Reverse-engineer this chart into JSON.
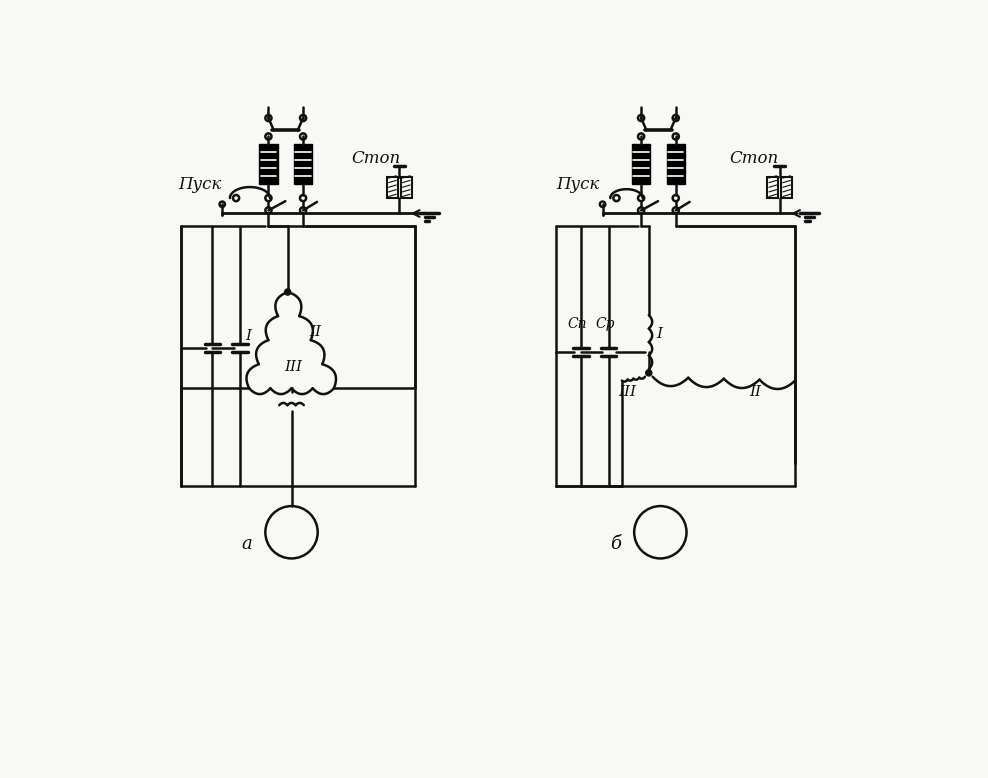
{
  "bg_color": "#f8f8f5",
  "lc": "#111111",
  "lw": 1.8,
  "lw_thick": 2.5,
  "title_a": "a",
  "title_b": "б",
  "label_pusk": "Пуск",
  "label_stop": "Стоп",
  "label_I": "I",
  "label_II": "II",
  "label_III": "III",
  "label_Cn": "Cп",
  "label_Cr": "Cр",
  "figw": 9.88,
  "figh": 7.78,
  "dpi": 100
}
